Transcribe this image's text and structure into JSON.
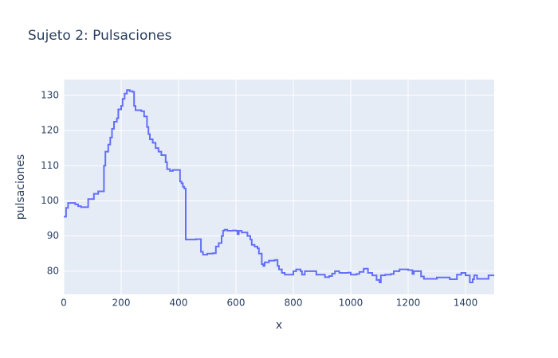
{
  "chart_data": {
    "type": "line",
    "title": "Sujeto 2: Pulsaciones",
    "x_label": "x",
    "y_label": "pulsaciones",
    "line_shape": "hv",
    "grid": true,
    "xlim": [
      0,
      1500
    ],
    "ylim": [
      73.4,
      134.5
    ],
    "xticks": [
      0,
      200,
      400,
      600,
      800,
      1000,
      1200,
      1400
    ],
    "yticks": [
      80,
      90,
      100,
      110,
      120,
      130
    ],
    "series": [
      {
        "color": "#636efa",
        "x": [
          0,
          8,
          15,
          40,
          50,
          60,
          85,
          105,
          120,
          140,
          145,
          155,
          162,
          168,
          175,
          185,
          190,
          200,
          205,
          212,
          220,
          230,
          240,
          245,
          250,
          270,
          280,
          290,
          295,
          300,
          310,
          320,
          330,
          340,
          355,
          360,
          370,
          380,
          400,
          405,
          410,
          415,
          420,
          425,
          440,
          460,
          475,
          478,
          485,
          500,
          520,
          530,
          540,
          550,
          555,
          560,
          570,
          590,
          600,
          605,
          610,
          620,
          640,
          650,
          655,
          665,
          675,
          680,
          690,
          695,
          700,
          715,
          735,
          745,
          750,
          760,
          770,
          790,
          800,
          810,
          825,
          830,
          840,
          880,
          900,
          910,
          925,
          935,
          945,
          960,
          990,
          1000,
          1020,
          1030,
          1045,
          1060,
          1075,
          1090,
          1100,
          1105,
          1120,
          1140,
          1150,
          1170,
          1200,
          1215,
          1220,
          1245,
          1255,
          1300,
          1345,
          1370,
          1385,
          1400,
          1415,
          1425,
          1430,
          1440,
          1470,
          1480,
          1500
        ],
        "values": [
          95.5,
          98,
          99.4,
          99,
          98.5,
          98.2,
          100.5,
          102,
          102.7,
          110,
          114,
          116,
          118,
          120.5,
          122.5,
          123.5,
          126,
          127,
          129,
          130.5,
          131.5,
          131.2,
          131,
          127,
          125.8,
          125.5,
          124,
          121,
          119,
          117.5,
          116.5,
          115,
          114,
          113,
          111,
          109,
          108.5,
          108.8,
          108.8,
          105.5,
          105,
          104,
          103.5,
          89,
          89,
          89.1,
          89.1,
          85.5,
          84.7,
          85,
          85.1,
          87,
          88,
          90,
          91.5,
          91.8,
          91.5,
          91.6,
          91.5,
          90.5,
          91.5,
          91,
          90,
          89,
          87.5,
          87,
          86.5,
          85,
          82,
          81.5,
          82.5,
          83,
          83.2,
          81.5,
          80.5,
          79.5,
          79,
          79,
          80,
          80.5,
          80,
          79,
          80,
          79,
          79,
          78.3,
          78.6,
          79.3,
          80,
          79.5,
          79.6,
          79,
          79.2,
          79.8,
          80.7,
          79.5,
          78.8,
          77.5,
          76.8,
          78.8,
          79,
          79.2,
          80,
          80.5,
          80.3,
          79.2,
          80,
          78.5,
          77.8,
          78.2,
          77.7,
          79,
          79.5,
          78.8,
          76.8,
          77.7,
          78.8,
          77.8,
          77.8,
          78.8,
          78.8
        ]
      }
    ]
  }
}
